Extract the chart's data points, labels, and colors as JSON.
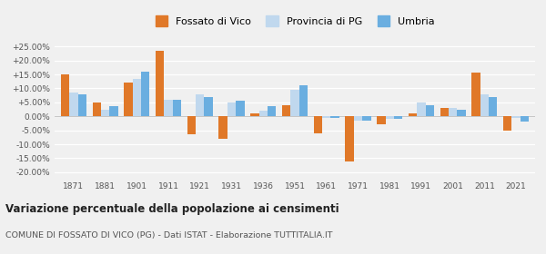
{
  "years": [
    1871,
    1881,
    1901,
    1911,
    1921,
    1931,
    1936,
    1951,
    1961,
    1971,
    1981,
    1991,
    2001,
    2011,
    2021
  ],
  "fossato": [
    15.0,
    5.0,
    12.0,
    23.5,
    -6.5,
    -8.0,
    1.0,
    4.0,
    -6.0,
    -16.0,
    -3.0,
    1.0,
    3.0,
    15.5,
    -5.0
  ],
  "provincia": [
    8.5,
    2.5,
    13.5,
    6.0,
    8.0,
    5.0,
    2.0,
    9.5,
    -0.5,
    -1.5,
    -1.0,
    5.0,
    3.0,
    8.0,
    -0.5
  ],
  "umbria": [
    8.0,
    3.5,
    16.0,
    6.0,
    7.0,
    5.5,
    3.5,
    11.0,
    -0.5,
    -1.5,
    -1.0,
    4.0,
    2.5,
    7.0,
    -2.0
  ],
  "color_fossato": "#e07828",
  "color_provincia": "#c0d8ee",
  "color_umbria": "#6aaee0",
  "title": "Variazione percentuale della popolazione ai censimenti",
  "subtitle": "COMUNE DI FOSSATO DI VICO (PG) - Dati ISTAT - Elaborazione TUTTITALIA.IT",
  "ylim": [
    -22,
    28
  ],
  "yticks": [
    -20,
    -15,
    -10,
    -5,
    0,
    5,
    10,
    15,
    20,
    25
  ],
  "background_color": "#f0f0f0",
  "legend_labels": [
    "Fossato di Vico",
    "Provincia di PG",
    "Umbria"
  ]
}
